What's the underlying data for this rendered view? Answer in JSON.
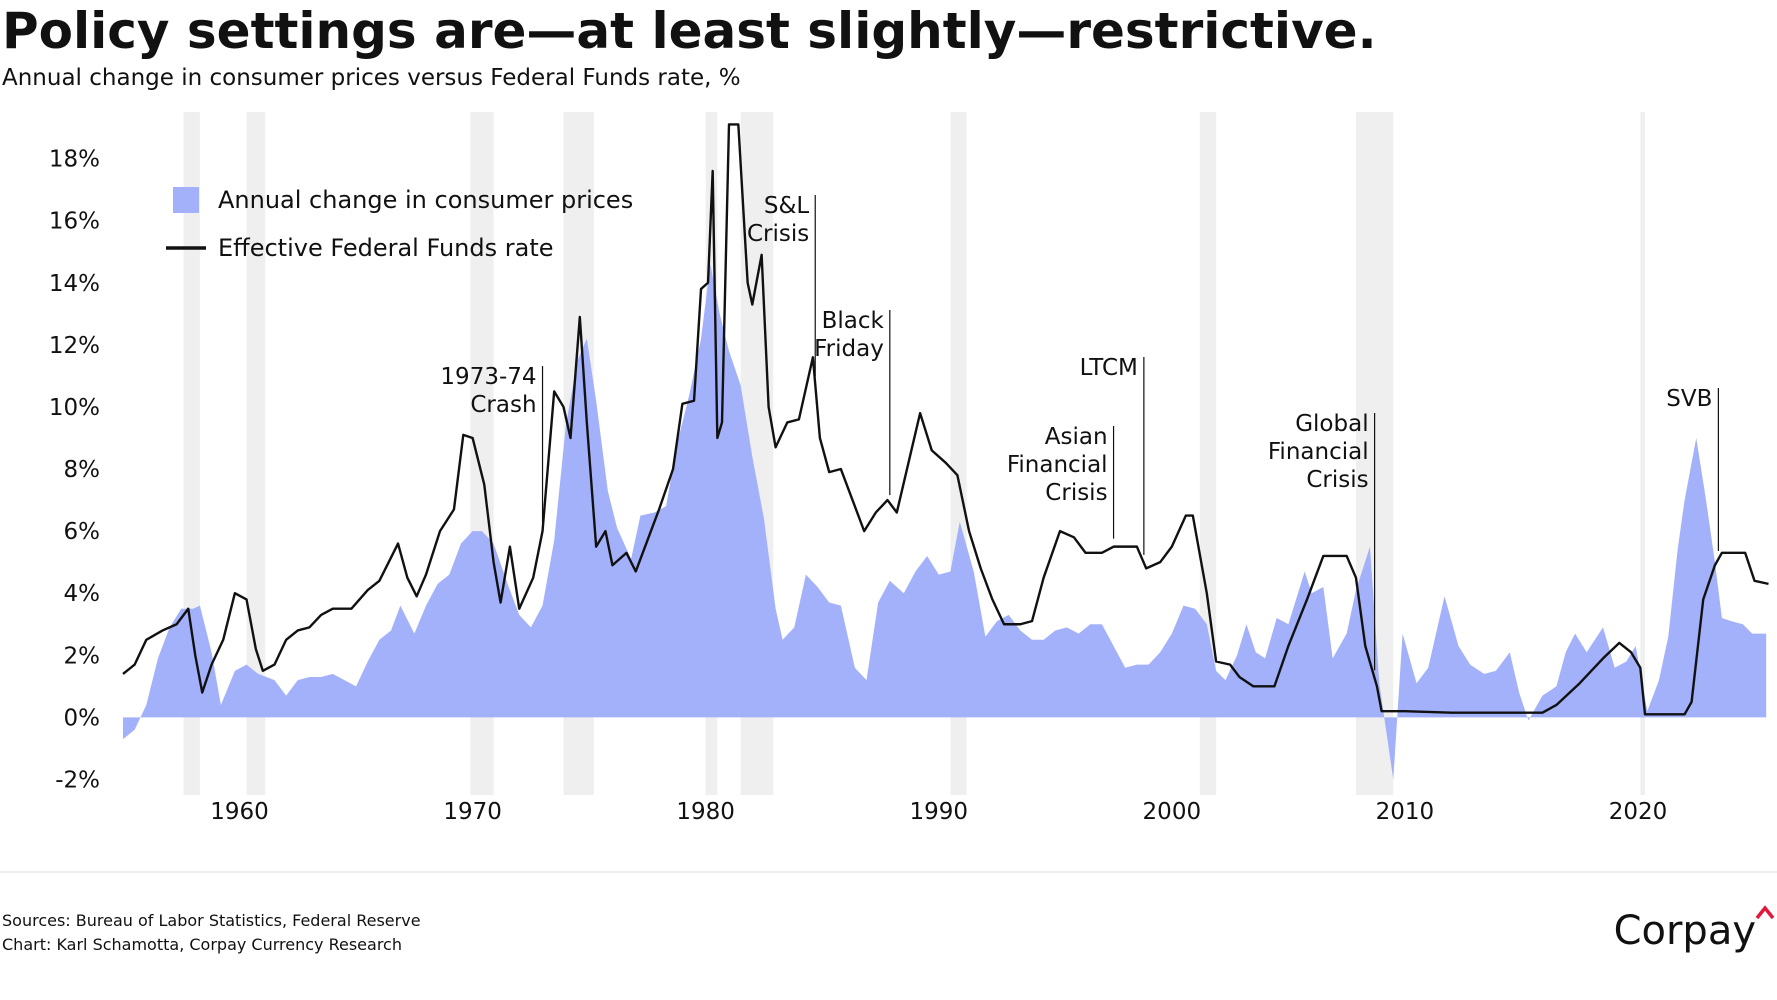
{
  "chart_data": {
    "type": "area-line",
    "title": "Policy settings are—at least slightly—restrictive.",
    "subtitle": "Annual change in consumer prices versus Federal Funds rate, %",
    "xlim": [
      1955,
      2025.75
    ],
    "xticks": [
      1960,
      1970,
      1980,
      1990,
      2000,
      2010,
      2020
    ],
    "ylim": [
      -2.5,
      19.5
    ],
    "yticks": [
      {
        "value": -2,
        "label": "-2%"
      },
      {
        "value": 0,
        "label": "0%"
      },
      {
        "value": 2,
        "label": "2%"
      },
      {
        "value": 4,
        "label": "4%"
      },
      {
        "value": 6,
        "label": "6%"
      },
      {
        "value": 8,
        "label": "8%"
      },
      {
        "value": 10,
        "label": "10%"
      },
      {
        "value": 12,
        "label": "12%"
      },
      {
        "value": 14,
        "label": "14%"
      },
      {
        "value": 16,
        "label": "16%"
      },
      {
        "value": 18,
        "label": "18%"
      }
    ],
    "legend": "upper left",
    "recessions": [
      [
        1957.6,
        1958.3
      ],
      [
        1960.3,
        1961.1
      ],
      [
        1969.9,
        1970.9
      ],
      [
        1973.9,
        1975.2
      ],
      [
        1980.0,
        1980.5
      ],
      [
        1981.5,
        1982.9
      ],
      [
        1990.5,
        1991.2
      ],
      [
        2001.2,
        2001.9
      ],
      [
        2007.9,
        2009.5
      ],
      [
        2020.1,
        2020.3
      ]
    ],
    "recession_color": "#efefef",
    "series": [
      {
        "name": "Annual change in consumer prices",
        "type": "area",
        "color": "#a3b1fa",
        "x": [
          1955.0,
          1955.5,
          1956.0,
          1956.5,
          1957.0,
          1957.5,
          1958.0,
          1958.3,
          1958.8,
          1959.2,
          1959.8,
          1960.3,
          1960.8,
          1961.5,
          1962.0,
          1962.5,
          1963.0,
          1963.5,
          1964.0,
          1964.5,
          1965.0,
          1965.5,
          1966.0,
          1966.5,
          1966.9,
          1967.5,
          1968.0,
          1968.5,
          1969.0,
          1969.5,
          1970.0,
          1970.4,
          1970.9,
          1971.5,
          1972.0,
          1972.5,
          1973.0,
          1973.5,
          1974.0,
          1974.5,
          1974.9,
          1975.3,
          1975.8,
          1976.2,
          1976.8,
          1977.2,
          1977.8,
          1978.3,
          1978.8,
          1979.3,
          1979.8,
          1980.2,
          1980.6,
          1981.0,
          1981.5,
          1982.0,
          1982.5,
          1983.0,
          1983.3,
          1983.8,
          1984.3,
          1984.8,
          1985.3,
          1985.8,
          1986.4,
          1986.9,
          1987.4,
          1987.9,
          1988.5,
          1989.0,
          1989.5,
          1990.0,
          1990.5,
          1990.9,
          1991.5,
          1992.0,
          1992.5,
          1993.0,
          1993.5,
          1994.0,
          1994.5,
          1995.0,
          1995.5,
          1996.0,
          1996.5,
          1997.0,
          1997.5,
          1998.0,
          1998.5,
          1999.0,
          1999.5,
          2000.0,
          2000.5,
          2001.0,
          2001.5,
          2001.9,
          2002.3,
          2002.8,
          2003.2,
          2003.6,
          2004.0,
          2004.5,
          2005.0,
          2005.7,
          2006.0,
          2006.5,
          2006.9,
          2007.5,
          2007.9,
          2008.5,
          2008.9,
          2009.5,
          2009.9,
          2010.5,
          2011.0,
          2011.7,
          2012.3,
          2012.8,
          2013.4,
          2013.9,
          2014.5,
          2014.9,
          2015.3,
          2015.9,
          2016.5,
          2016.9,
          2017.3,
          2017.8,
          2018.5,
          2019.0,
          2019.5,
          2019.9,
          2020.4,
          2020.9,
          2021.3,
          2021.7,
          2022.0,
          2022.5,
          2022.9,
          2023.3,
          2023.6,
          2024.0,
          2024.5,
          2024.9,
          2025.5
        ],
        "values": [
          -0.7,
          -0.4,
          0.4,
          1.9,
          2.9,
          3.5,
          3.5,
          3.6,
          2.1,
          0.4,
          1.5,
          1.7,
          1.4,
          1.2,
          0.7,
          1.2,
          1.3,
          1.3,
          1.4,
          1.2,
          1.0,
          1.8,
          2.5,
          2.8,
          3.6,
          2.7,
          3.6,
          4.3,
          4.6,
          5.6,
          6.0,
          6.0,
          5.6,
          4.3,
          3.3,
          2.9,
          3.6,
          5.7,
          9.4,
          11.5,
          12.2,
          10.2,
          7.3,
          6.1,
          5.1,
          6.5,
          6.6,
          6.8,
          8.9,
          10.4,
          12.2,
          14.6,
          13.0,
          11.8,
          10.7,
          8.4,
          6.4,
          3.5,
          2.5,
          2.9,
          4.6,
          4.2,
          3.7,
          3.6,
          1.6,
          1.2,
          3.7,
          4.4,
          4.0,
          4.7,
          5.2,
          4.6,
          4.7,
          6.3,
          4.7,
          2.6,
          3.1,
          3.3,
          2.8,
          2.5,
          2.5,
          2.8,
          2.9,
          2.7,
          3.0,
          3.0,
          2.3,
          1.6,
          1.7,
          1.7,
          2.1,
          2.7,
          3.6,
          3.5,
          3.0,
          1.5,
          1.2,
          2.0,
          3.0,
          2.1,
          1.9,
          3.2,
          3.0,
          4.7,
          4.0,
          4.2,
          1.9,
          2.7,
          4.1,
          5.5,
          1.1,
          -2.0,
          2.7,
          1.1,
          1.6,
          3.9,
          2.3,
          1.7,
          1.4,
          1.5,
          2.1,
          0.8,
          -0.1,
          0.7,
          1.0,
          2.1,
          2.7,
          2.1,
          2.9,
          1.6,
          1.8,
          2.3,
          0.2,
          1.2,
          2.6,
          5.4,
          7.0,
          9.0,
          7.1,
          5.0,
          3.2,
          3.1,
          3.0,
          2.7,
          2.7
        ]
      },
      {
        "name": "Effective Federal Funds rate",
        "type": "line",
        "color": "#111111",
        "x": [
          1955.0,
          1955.5,
          1956.0,
          1956.7,
          1957.3,
          1957.8,
          1958.1,
          1958.4,
          1958.8,
          1959.3,
          1959.8,
          1960.3,
          1960.7,
          1961.0,
          1961.5,
          1962.0,
          1962.5,
          1963.0,
          1963.5,
          1964.0,
          1964.8,
          1965.5,
          1966.0,
          1966.8,
          1967.2,
          1967.6,
          1968.0,
          1968.6,
          1969.2,
          1969.6,
          1970.0,
          1970.5,
          1970.9,
          1971.2,
          1971.6,
          1972.0,
          1972.6,
          1973.0,
          1973.5,
          1973.9,
          1974.2,
          1974.6,
          1974.9,
          1975.3,
          1975.7,
          1976.0,
          1976.6,
          1977.0,
          1977.6,
          1978.0,
          1978.6,
          1979.0,
          1979.5,
          1979.8,
          1980.1,
          1980.3,
          1980.5,
          1980.7,
          1981.0,
          1981.4,
          1981.8,
          1982.0,
          1982.4,
          1982.7,
          1983.0,
          1983.5,
          1984.0,
          1984.6,
          1984.9,
          1985.3,
          1985.8,
          1986.3,
          1986.8,
          1987.3,
          1987.8,
          1988.2,
          1988.7,
          1989.2,
          1989.7,
          1990.3,
          1990.8,
          1991.3,
          1991.8,
          1992.3,
          1992.8,
          1993.5,
          1994.0,
          1994.5,
          1995.2,
          1995.8,
          1996.3,
          1997.0,
          1997.5,
          1998.5,
          1998.9,
          1999.5,
          2000.0,
          2000.6,
          2000.9,
          2001.5,
          2001.9,
          2002.5,
          2002.9,
          2003.5,
          2004.4,
          2005.0,
          2005.8,
          2006.5,
          2007.5,
          2007.9,
          2008.3,
          2008.8,
          2009.0,
          2010.0,
          2012.0,
          2015.9,
          2016.5,
          2017.5,
          2018.5,
          2019.2,
          2019.7,
          2020.1,
          2020.3,
          2022.0,
          2022.3,
          2022.8,
          2023.3,
          2023.6,
          2024.6,
          2025.0,
          2025.6
        ],
        "values": [
          1.4,
          1.7,
          2.5,
          2.8,
          3.0,
          3.5,
          2.0,
          0.8,
          1.7,
          2.5,
          4.0,
          3.8,
          2.2,
          1.5,
          1.7,
          2.5,
          2.8,
          2.9,
          3.3,
          3.5,
          3.5,
          4.1,
          4.4,
          5.6,
          4.5,
          3.9,
          4.6,
          6.0,
          6.7,
          9.1,
          9.0,
          7.5,
          5.0,
          3.7,
          5.5,
          3.5,
          4.5,
          6.0,
          10.5,
          10.0,
          9.0,
          12.9,
          9.5,
          5.5,
          6.0,
          4.9,
          5.3,
          4.7,
          5.9,
          6.7,
          8.0,
          10.1,
          10.2,
          13.8,
          14.0,
          17.6,
          9.0,
          9.5,
          19.1,
          19.1,
          14.0,
          13.3,
          14.9,
          10.0,
          8.7,
          9.5,
          9.6,
          11.6,
          9.0,
          7.9,
          8.0,
          7.0,
          6.0,
          6.6,
          7.0,
          6.6,
          8.2,
          9.8,
          8.6,
          8.2,
          7.8,
          6.0,
          4.8,
          3.8,
          3.0,
          3.0,
          3.1,
          4.5,
          6.0,
          5.8,
          5.3,
          5.3,
          5.5,
          5.5,
          4.8,
          5.0,
          5.5,
          6.5,
          6.5,
          4.0,
          1.8,
          1.7,
          1.3,
          1.0,
          1.0,
          2.3,
          3.8,
          5.2,
          5.2,
          4.5,
          2.3,
          1.0,
          0.2,
          0.2,
          0.15,
          0.15,
          0.4,
          1.1,
          1.9,
          2.4,
          2.1,
          1.6,
          0.1,
          0.1,
          0.5,
          3.8,
          4.9,
          5.3,
          5.3,
          4.4,
          4.3
        ]
      }
    ],
    "annotations": [
      {
        "lines": [
          "1973-74",
          "Crash"
        ],
        "x": 1973.0
      },
      {
        "lines": [
          "S&L",
          "Crisis"
        ],
        "x": 1984.7
      },
      {
        "lines": [
          "Black",
          "Friday"
        ],
        "x": 1987.9
      },
      {
        "lines": [
          "Asian",
          "Financial",
          "Crisis"
        ],
        "x": 1997.5
      },
      {
        "lines": [
          "LTCM"
        ],
        "x": 1998.8
      },
      {
        "lines": [
          "Global",
          "Financial",
          "Crisis"
        ],
        "x": 2008.7
      },
      {
        "lines": [
          "SVB"
        ],
        "x": 2023.45
      }
    ],
    "sources": "Sources: Bureau of Labor Statistics, Federal Reserve",
    "credit": "Chart: Karl Schamotta, Corpay Currency Research",
    "logo": "Corpay"
  }
}
